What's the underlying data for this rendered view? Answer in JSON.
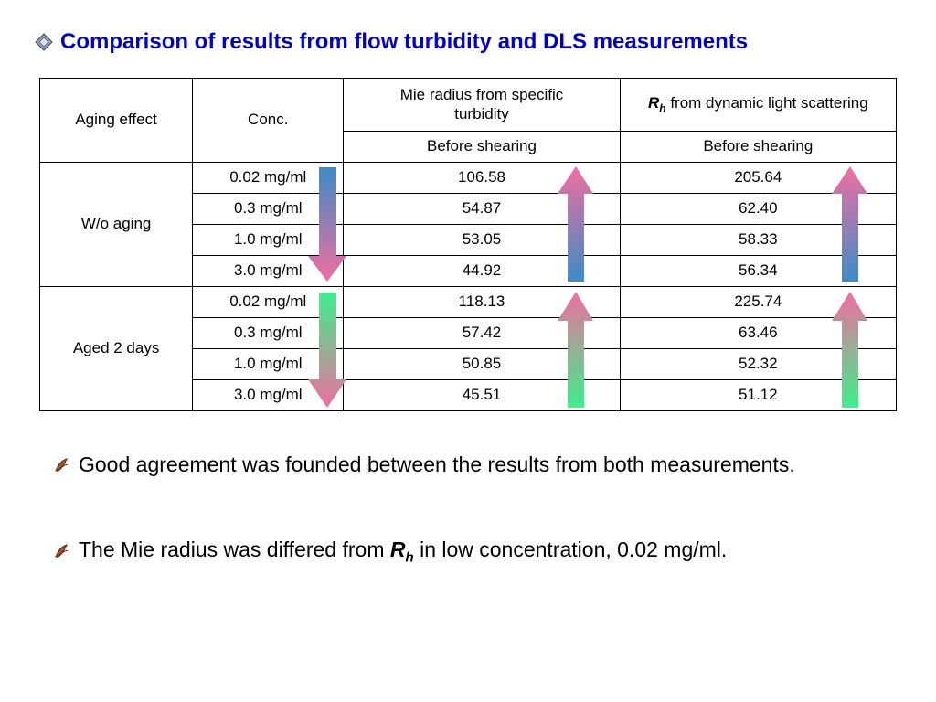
{
  "title": "Comparison of results from flow turbidity and DLS measurements",
  "table": {
    "headers": {
      "aging_effect": "Aging effect",
      "conc": "Conc.",
      "mie": "Mie radius from specific turbidity",
      "rh_symbol": "R",
      "rh_sub": "h",
      "rh_rest": " from dynamic light scattering",
      "before1": "Before shearing",
      "before2": "Before shearing"
    },
    "groups": [
      {
        "label": "W/o aging",
        "rows": [
          {
            "conc": "0.02 mg/ml",
            "mie": "106.58",
            "rh": "205.64"
          },
          {
            "conc": "0.3 mg/ml",
            "mie": "54.87",
            "rh": "62.40"
          },
          {
            "conc": "1.0 mg/ml",
            "mie": "53.05",
            "rh": "58.33"
          },
          {
            "conc": "3.0 mg/ml",
            "mie": "44.92",
            "rh": "56.34"
          }
        ]
      },
      {
        "label": "Aged 2 days",
        "rows": [
          {
            "conc": "0.02 mg/ml",
            "mie": "118.13",
            "rh": "225.74"
          },
          {
            "conc": "0.3 mg/ml",
            "mie": "57.42",
            "rh": "63.46"
          },
          {
            "conc": "1.0 mg/ml",
            "mie": "50.85",
            "rh": "52.32"
          },
          {
            "conc": "3.0 mg/ml",
            "mie": "45.51",
            "rh": "51.12"
          }
        ]
      }
    ]
  },
  "bullets": [
    {
      "text": "Good agreement was founded between the results from both measurements."
    },
    {
      "pre": "The Mie radius was differed from ",
      "sym": "R",
      "sub": "h",
      "post": " in low concentration, 0.02 mg/ml."
    }
  ],
  "colors": {
    "title": "#0000c8",
    "pink": "#f06ea0",
    "blue": "#3c8cc8",
    "green": "#3cf08c"
  }
}
